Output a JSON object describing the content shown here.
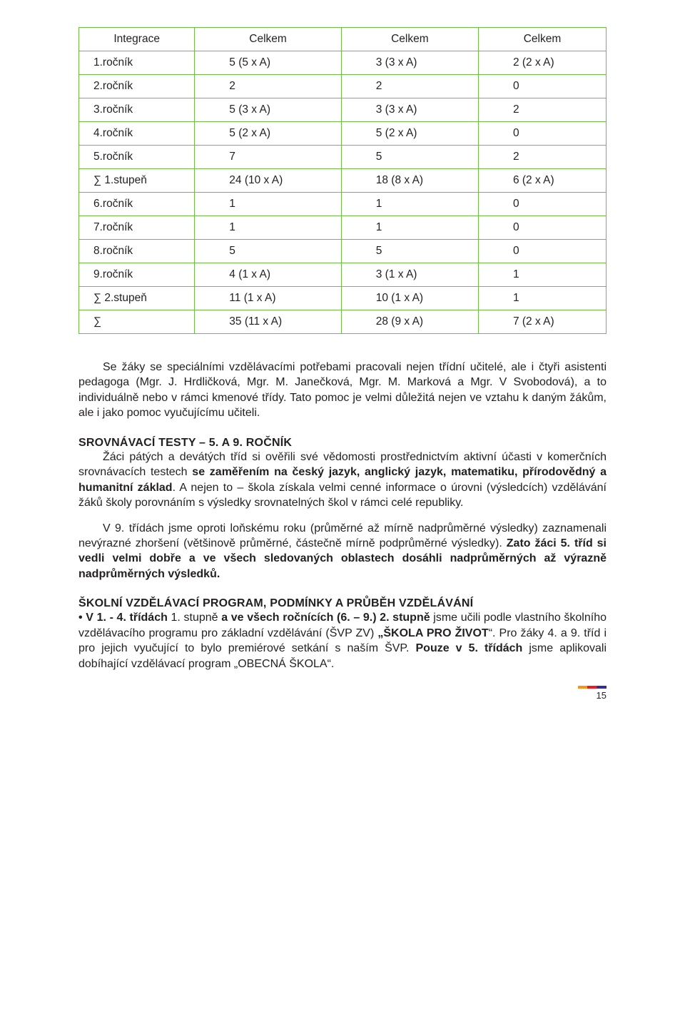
{
  "table": {
    "headers": [
      "Integrace",
      "Celkem",
      "Celkem",
      "Celkem"
    ],
    "rows": [
      [
        "1.ročník",
        "5 (5 x A)",
        "3 (3 x A)",
        "2 (2 x A)"
      ],
      [
        "2.ročník",
        "2",
        "2",
        "0"
      ],
      [
        "3.ročník",
        "5 (3 x A)",
        "3 (3 x A)",
        "2"
      ],
      [
        "4.ročník",
        "5 (2 x A)",
        "5 (2 x A)",
        "0"
      ],
      [
        "5.ročník",
        "7",
        "5",
        "2"
      ],
      [
        "∑ 1.stupeň",
        "24 (10 x A)",
        "18 (8 x A)",
        "6 (2 x A)"
      ],
      [
        "6.ročník",
        "1",
        "1",
        "0"
      ],
      [
        "7.ročník",
        "1",
        "1",
        "0"
      ],
      [
        "8.ročník",
        "5",
        "5",
        "0"
      ],
      [
        "9.ročník",
        "4 (1 x A)",
        "3 (1 x A)",
        "1"
      ],
      [
        "∑ 2.stupeň",
        "11 (1 x A)",
        "10 (1 x A)",
        "1"
      ],
      [
        "∑",
        "35 (11 x A)",
        "28 (9 x A)",
        "7 (2 x A)"
      ]
    ],
    "border_color": "#6cbe45"
  },
  "body": {
    "p1_a": "Se žáky se speciálními vzdělávacími potřebami pracovali nejen třídní učitelé, ale i čtyři asistenti pedagoga (Mgr. J. Hrdličková, Mgr. M. Janečková, Mgr. M. Marková a Mgr. V Svobodová), a to individuálně  nebo v rámci kmenové třídy. Tato pomoc je velmi důležitá nejen ve vztahu k daným žákům, ale i jako pomoc vyučujícímu učiteli.",
    "h1": "SROVNÁVACÍ TESTY – 5. A 9. ROČNÍK",
    "p2_a": "Žáci  pátých a devátých tříd si ověřili své vědomosti prostřednictvím aktivní účasti v komerčních srovnávacích testech ",
    "p2_b": "se zaměřením na český jazyk, anglický jazyk, matematiku, přírodovědný  a humanitní základ",
    "p2_c": ". A nejen to – škola získala velmi cenné informace o úrovni (výsledcích) vzdělávání žáků školy porovnáním s výsledky srovnatelných škol v rámci celé republiky.",
    "p3_a": "V 9. třídách jsme oproti loňskému roku (průměrné až mírně nadprůměrné výsledky) zaznamenali nevýrazné zhoršení (většinově průměrné, částečně mírně podprůměrné výsledky). ",
    "p3_b": "Zato žáci 5. tříd si vedli velmi dobře a ve všech sledovaných oblastech dosáhli nadprůměrných až výrazně nadprůměrných výsledků.",
    "h2": "ŠKOLNÍ VZDĚLÁVACÍ PROGRAM, PODMÍNKY A PRŮBĚH VZDĚLÁVÁNÍ",
    "p4_a": "• V 1. - 4. třídách",
    "p4_b": " 1. stupně ",
    "p4_c": "a ve všech ročnících (6. – 9.) 2. stupně",
    "p4_d": " jsme učili podle vlastního školního vzdělávacího programu pro základní vzdělávání (ŠVP ZV) ",
    "p4_e": "„ŠKOLA PRO ŽIVOT",
    "p4_f": "“. Pro žáky 4. a 9. tříd i pro jejich vyučující to bylo premiérové setkání s naším ŠVP. ",
    "p4_g": "Pouze v 5. třídách",
    "p4_h": " jsme aplikovali dobíhající vzdělávací program „OBECNÁ ŠKOLA“."
  },
  "page_number": "15"
}
